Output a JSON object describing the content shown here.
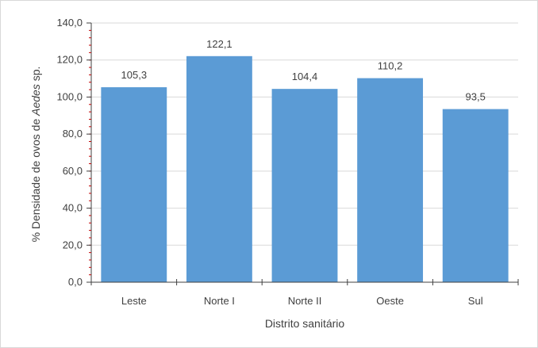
{
  "chart_data": {
    "type": "bar",
    "categories": [
      "Leste",
      "Norte I",
      "Norte II",
      "Oeste",
      "Sul"
    ],
    "values": [
      105.3,
      122.1,
      104.4,
      110.2,
      93.5
    ],
    "data_labels": [
      "105,3",
      "122,1",
      "104,4",
      "110,2",
      "93,5"
    ],
    "title": "",
    "xlabel": "Distrito sanitário",
    "ylabel": {
      "prefix": "% Densidade de ovos de ",
      "italic": "Aedes",
      "suffix": " sp."
    },
    "ylim": [
      0,
      140
    ],
    "yticks": [
      0,
      20,
      40,
      60,
      80,
      100,
      120,
      140
    ],
    "ytick_labels": [
      "0,0",
      "20,0",
      "40,0",
      "60,0",
      "80,0",
      "100,0",
      "120,0",
      "140,0"
    ],
    "grid": true,
    "legend": "none",
    "colors": {
      "bar": "#5b9bd5",
      "grid": "#d9d9d9",
      "axis": "#404040",
      "minor_ticks": "#c00000"
    }
  }
}
